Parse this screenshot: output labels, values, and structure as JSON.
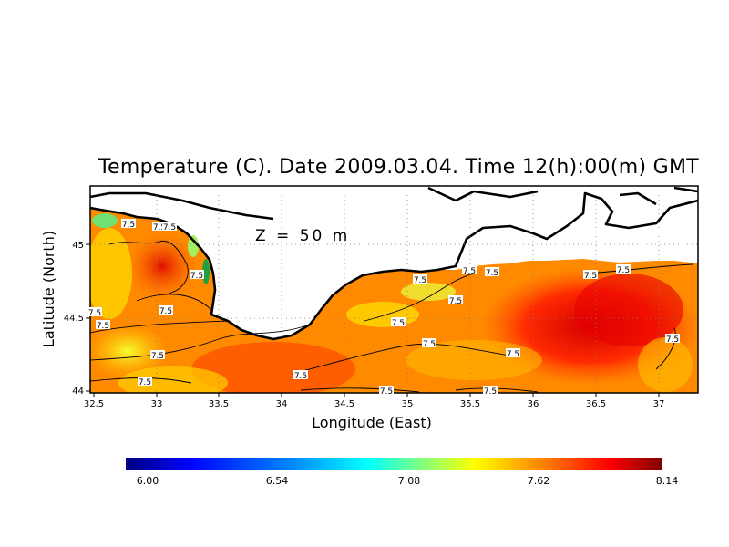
{
  "title": "Temperature (C). Date 2009.03.04. Time 12(h):00(m) GMT",
  "depth_label": "Z = 50 m",
  "x_axis": {
    "label": "Longitude (East)",
    "ticks": [
      "32.5",
      "33",
      "33.5",
      "34",
      "34.5",
      "35",
      "35.5",
      "36",
      "36.5",
      "37"
    ],
    "range": [
      32.5,
      37.3
    ]
  },
  "y_axis": {
    "label": "Latitude (North)",
    "ticks": [
      "44",
      "44.5",
      "45"
    ],
    "range": [
      44.0,
      45.35
    ]
  },
  "contour_labels": [
    "7.5",
    "7.5",
    "7.5",
    "7.5",
    "7.5",
    "7.5",
    "7.5",
    "7.5",
    "7.5",
    "7.5",
    "7.5",
    "7.5",
    "7.5",
    "7.5",
    "7.5",
    "7.5",
    "7.5",
    "7.5",
    "7.5",
    "7.5",
    "7.5",
    "7.5"
  ],
  "colorbar": {
    "ticks": [
      "6.00",
      "6.54",
      "7.08",
      "7.62",
      "8.14"
    ],
    "min": 6.0,
    "max": 8.14,
    "colors": [
      "#000080",
      "#0000ff",
      "#0080ff",
      "#00ffff",
      "#80ff80",
      "#ffff00",
      "#ff8000",
      "#ff0000",
      "#800000"
    ]
  }
}
